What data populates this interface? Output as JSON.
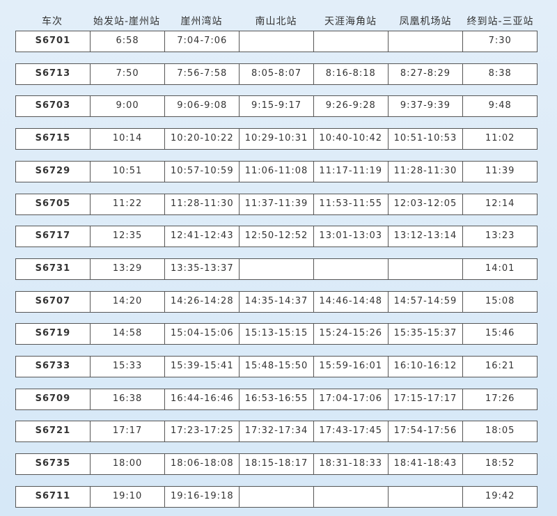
{
  "headers": [
    "车次",
    "始发站-崖州站",
    "崖州湾站",
    "南山北站",
    "天涯海角站",
    "凤凰机场站",
    "终到站-三亚站"
  ],
  "rows": [
    [
      "S6701",
      "6:58",
      "7:04-7:06",
      "",
      "",
      "",
      "7:30"
    ],
    [
      "S6713",
      "7:50",
      "7:56-7:58",
      "8:05-8:07",
      "8:16-8:18",
      "8:27-8:29",
      "8:38"
    ],
    [
      "S6703",
      "9:00",
      "9:06-9:08",
      "9:15-9:17",
      "9:26-9:28",
      "9:37-9:39",
      "9:48"
    ],
    [
      "S6715",
      "10:14",
      "10:20-10:22",
      "10:29-10:31",
      "10:40-10:42",
      "10:51-10:53",
      "11:02"
    ],
    [
      "S6729",
      "10:51",
      "10:57-10:59",
      "11:06-11:08",
      "11:17-11:19",
      "11:28-11:30",
      "11:39"
    ],
    [
      "S6705",
      "11:22",
      "11:28-11:30",
      "11:37-11:39",
      "11:53-11:55",
      "12:03-12:05",
      "12:14"
    ],
    [
      "S6717",
      "12:35",
      "12:41-12:43",
      "12:50-12:52",
      "13:01-13:03",
      "13:12-13:14",
      "13:23"
    ],
    [
      "S6731",
      "13:29",
      "13:35-13:37",
      "",
      "",
      "",
      "14:01"
    ],
    [
      "S6707",
      "14:20",
      "14:26-14:28",
      "14:35-14:37",
      "14:46-14:48",
      "14:57-14:59",
      "15:08"
    ],
    [
      "S6719",
      "14:58",
      "15:04-15:06",
      "15:13-15:15",
      "15:24-15:26",
      "15:35-15:37",
      "15:46"
    ],
    [
      "S6733",
      "15:33",
      "15:39-15:41",
      "15:48-15:50",
      "15:59-16:01",
      "16:10-16:12",
      "16:21"
    ],
    [
      "S6709",
      "16:38",
      "16:44-16:46",
      "16:53-16:55",
      "17:04-17:06",
      "17:15-17:17",
      "17:26"
    ],
    [
      "S6721",
      "17:17",
      "17:23-17:25",
      "17:32-17:34",
      "17:43-17:45",
      "17:54-17:56",
      "18:05"
    ],
    [
      "S6735",
      "18:00",
      "18:06-18:08",
      "18:15-18:17",
      "18:31-18:33",
      "18:41-18:43",
      "18:52"
    ],
    [
      "S6711",
      "19:10",
      "19:16-19:18",
      "",
      "",
      "",
      "19:42"
    ]
  ]
}
